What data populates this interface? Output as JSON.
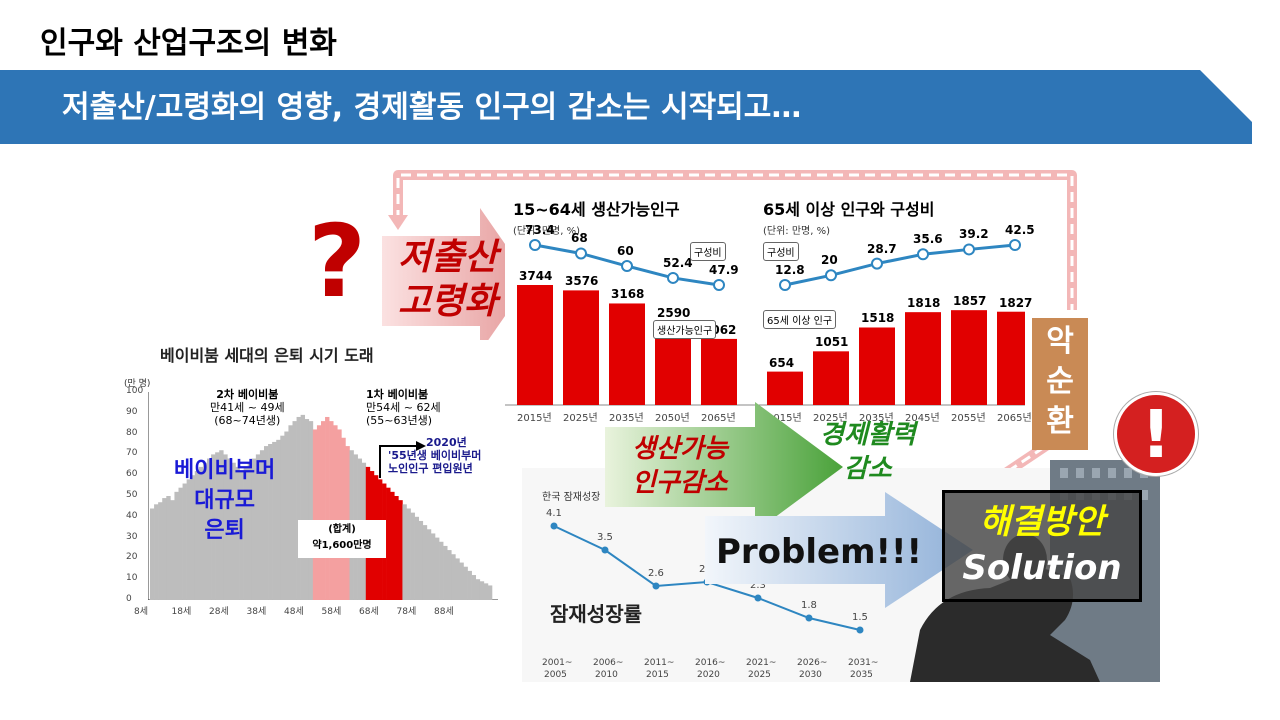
{
  "slide": {
    "title": "인구와 산업구조의 변화",
    "subtitle": "저출산/고령화의 영향, 경제활동 인구의 감소는 시작되고…",
    "question_mark": "?",
    "exclamation_mark": "!",
    "arrow_low_birth": [
      "저출산",
      "고령화"
    ],
    "vicious_cycle": [
      "악",
      "순",
      "환"
    ],
    "arrow_working_age": [
      "생산가능",
      "인구감소"
    ],
    "economic_activity": [
      "경제활력",
      "감소"
    ],
    "problem_label": "Problem!!!",
    "solution_kor": "해결방안",
    "solution_eng": "Solution"
  },
  "babyboom": {
    "title": "베이비붐 세대의 은퇴 시기 도래",
    "unit": "(만 명)",
    "boom2_title": "2차 베이비붐",
    "boom2_age": "만41세 ~ 49세",
    "boom2_birth": "(68~74년생)",
    "boom1_title": "1차 베이비붐",
    "boom1_age": "만54세 ~ 62세",
    "boom1_birth": "(55~63년생)",
    "note_year": "2020년",
    "note_line1": "'55년생 베이비부머",
    "note_line2": "노인인구 편입원년",
    "big_label": [
      "베이비부머",
      "대규모",
      "은퇴"
    ],
    "total_label": "(합계)",
    "total_value": "약1,600만명",
    "y_ticks": [
      "100",
      "90",
      "80",
      "70",
      "60",
      "50",
      "40",
      "30",
      "20",
      "10",
      "0"
    ],
    "x_ticks": [
      "8세",
      "18세",
      "28세",
      "38세",
      "48세",
      "58세",
      "68세",
      "78세",
      "88세"
    ],
    "chart_data": {
      "type": "bar",
      "ylim": [
        0,
        100
      ],
      "bars": [
        44,
        46,
        47,
        49,
        50,
        48,
        52,
        54,
        56,
        58,
        60,
        62,
        64,
        66,
        68,
        70,
        71,
        72,
        70,
        68,
        66,
        64,
        62,
        64,
        66,
        68,
        70,
        72,
        74,
        75,
        76,
        77,
        79,
        81,
        84,
        86,
        88,
        89,
        87,
        86,
        82,
        84,
        86,
        88,
        86,
        84,
        82,
        78,
        74,
        72,
        70,
        68,
        66,
        64,
        62,
        60,
        58,
        56,
        54,
        52,
        50,
        48,
        46,
        44,
        42,
        40,
        38,
        36,
        34,
        32,
        30,
        28,
        26,
        24,
        22,
        20,
        18,
        16,
        14,
        12,
        10,
        9,
        8,
        7
      ],
      "highlight_2nd_range": [
        40,
        48
      ],
      "highlight_1st_range": [
        53,
        61
      ],
      "colors": {
        "base": "#bdbdbd",
        "boom2": "#f4a0a0",
        "boom1": "#e10000"
      }
    }
  },
  "working_age": {
    "title": "15~64세 생산가능인구",
    "unit": "(단위: 만명, %)",
    "ratio_tag": "구성비",
    "pop_tag": "생산가능인구",
    "chart_data": {
      "type": "bar",
      "categories": [
        "2015년",
        "2025년",
        "2035년",
        "2050년",
        "2065년"
      ],
      "series": [
        {
          "name": "생산가능인구",
          "values": [
            3744,
            3576,
            3168,
            2590,
            2062
          ]
        },
        {
          "name": "구성비",
          "values": [
            73.4,
            68,
            60,
            52.4,
            47.9
          ]
        }
      ],
      "value_labels": [
        "3744",
        "3576",
        "3168",
        "2590",
        "2062"
      ],
      "ratio_labels": [
        "73.4",
        "68",
        "60",
        "52.4",
        "47.9"
      ]
    }
  },
  "elderly": {
    "title": "65세 이상 인구와 구성비",
    "unit": "(단위: 만명, %)",
    "ratio_tag": "구성비",
    "pop_tag": "65세 이상 인구",
    "chart_data": {
      "type": "bar",
      "categories": [
        "2015년",
        "2025년",
        "2035년",
        "2045년",
        "2055년",
        "2065년"
      ],
      "series": [
        {
          "name": "65세 이상 인구",
          "values": [
            654,
            1051,
            1518,
            1818,
            1857,
            1827
          ]
        },
        {
          "name": "구성비",
          "values": [
            12.8,
            20,
            28.7,
            35.6,
            39.2,
            42.5
          ]
        }
      ],
      "value_labels": [
        "654",
        "1051",
        "1518",
        "1818",
        "1857",
        "1827"
      ],
      "ratio_labels": [
        "12.8",
        "20",
        "28.7",
        "35.6",
        "39.2",
        "42.5"
      ]
    }
  },
  "growth": {
    "title": "잠재성장률",
    "header": "한국 잠재성장",
    "chart_data": {
      "type": "line",
      "categories": [
        "2001~2005",
        "2006~2010",
        "2011~2015",
        "2016~2020",
        "2021~2025",
        "2026~2030",
        "2031~2035"
      ],
      "x_top": [
        "2001~",
        "2006~",
        "2011~",
        "2016~",
        "2021~",
        "2026~",
        "2031~"
      ],
      "x_bottom": [
        "2005",
        "2010",
        "2015",
        "2020",
        "2025",
        "2030",
        "2035"
      ],
      "values": [
        4.1,
        3.5,
        2.6,
        2.7,
        2.3,
        1.8,
        1.5
      ],
      "labels": [
        "4.1",
        "3.5",
        "2.6",
        "2.7",
        "2.3",
        "1.8",
        "1.5"
      ]
    }
  }
}
